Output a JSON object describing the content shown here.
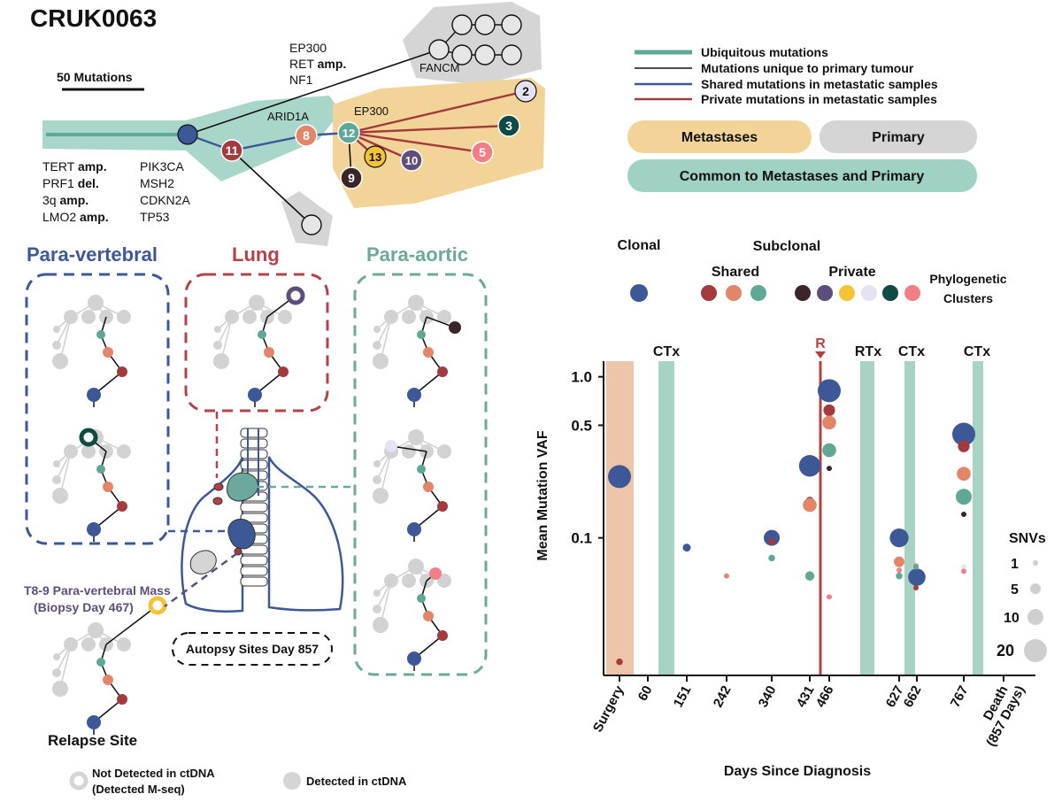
{
  "title": "CRUK0063",
  "colors": {
    "teal": "#5fa896",
    "teal_light": "#9fd1c4",
    "metastasis_bg": "#f3d498",
    "primary_bg": "#d5d5d5",
    "navy": "#3d5896",
    "dark_red": "#a33a3d",
    "coral": "#e2866a",
    "purple": "#5e4e7c",
    "yellow": "#f5c334",
    "lavender": "#e5e3f2",
    "dark_green": "#0f4b45",
    "pink": "#f37f86",
    "dark_brown": "#3a2628",
    "lung_red": "#b3434a",
    "paraaortic_teal": "#6aa99c",
    "surgery_band": "#eec5a8",
    "therapy_band": "#a8d3c2",
    "relapse_line": "#b54242"
  },
  "tree": {
    "scale_label": "50 Mutations",
    "trunk_drivers": [
      "TERT amp.",
      "PRF1 del.",
      "3q amp.",
      "LMO2 amp."
    ],
    "branch_drivers": [
      "PIK3CA",
      "MSH2",
      "CDKN2A",
      "TP53"
    ],
    "primary_drivers": [
      "EP300",
      "RET amp.",
      "NF1"
    ],
    "fancm": "FANCM",
    "arid1a": "ARID1A",
    "ep300_met": "EP300",
    "node_labels": {
      "n11": "11",
      "n8": "8",
      "n12": "12",
      "n13": "13",
      "n10": "10",
      "n9": "9",
      "n2": "2",
      "n3": "3",
      "n5": "5"
    }
  },
  "legend": {
    "lines": [
      {
        "label": "Ubiquitous mutations",
        "color": "#5fa896"
      },
      {
        "label": "Mutations unique to primary tumour",
        "color": "#111111"
      },
      {
        "label": "Shared mutations in metastatic samples",
        "color": "#3d5896"
      },
      {
        "label": "Private mutations in metastatic samples",
        "color": "#a33a3d"
      }
    ],
    "boxes": {
      "metastases": "Metastases",
      "primary": "Primary",
      "common": "Common to Metastases and Primary"
    }
  },
  "sites": {
    "para_vertebral": "Para-vertebral",
    "lung": "Lung",
    "para_aortic": "Para-aortic",
    "biopsy_line1": "T8-9 Para-vertebral Mass",
    "biopsy_line2": "(Biopsy Day 467)",
    "autopsy": "Autopsy Sites Day 857",
    "relapse": "Relapse Site"
  },
  "bottom_legend": {
    "not_detected_1": "Not Detected in ctDNA",
    "not_detected_2": "(Detected M-seq)",
    "detected": "Detected in ctDNA"
  },
  "cluster_legend": {
    "clonal": "Clonal",
    "subclonal": "Subclonal",
    "shared": "Shared",
    "private": "Private",
    "phylo1": "Phylogenetic",
    "phylo2": "Clusters"
  },
  "chart_data": {
    "type": "scatter",
    "ylabel": "Mean Mutation VAF",
    "xlabel": "Days Since Diagnosis",
    "y_scale": "log",
    "y_ticks": [
      {
        "value": 1.0,
        "label": "1.0"
      },
      {
        "value": 0.5,
        "label": "0.5"
      },
      {
        "value": 0.1,
        "label": "0.1"
      }
    ],
    "x_ticks": [
      "Surgery",
      "60",
      "151",
      "242",
      "340",
      "431",
      "466",
      "627",
      "662",
      "767",
      "Death",
      "(857 Days)"
    ],
    "therapy_labels": {
      "ctx1": "CTx",
      "rtx": "RTx",
      "ctx2": "CTx",
      "ctx3": "CTx",
      "relapse": "R"
    },
    "size_legend": {
      "title": "SNVs",
      "entries": [
        "1",
        "5",
        "10",
        "20"
      ]
    },
    "series": [
      {
        "x": "Surgery",
        "vaf": 0.24,
        "cluster": "clonal",
        "color": "#3d5896",
        "snvs": 20
      },
      {
        "x": "Surgery",
        "vaf": 0.017,
        "cluster": "shared",
        "color": "#a33a3d",
        "snvs": 2
      },
      {
        "x": "151",
        "vaf": 0.087,
        "cluster": "clonal",
        "color": "#3d5896",
        "snvs": 3
      },
      {
        "x": "242",
        "vaf": 0.058,
        "cluster": "shared",
        "color": "#e2866a",
        "snvs": 1
      },
      {
        "x": "340",
        "vaf": 0.1,
        "cluster": "clonal",
        "color": "#3d5896",
        "snvs": 10
      },
      {
        "x": "340",
        "vaf": 0.095,
        "cluster": "shared",
        "color": "#a33a3d",
        "snvs": 2
      },
      {
        "x": "340",
        "vaf": 0.075,
        "cluster": "shared",
        "color": "#5fa896",
        "snvs": 2
      },
      {
        "x": "431",
        "vaf": 0.28,
        "cluster": "clonal",
        "color": "#3d5896",
        "snvs": 18
      },
      {
        "x": "431",
        "vaf": 0.17,
        "cluster": "shared",
        "color": "#a33a3d",
        "snvs": 3
      },
      {
        "x": "431",
        "vaf": 0.16,
        "cluster": "shared",
        "color": "#e2866a",
        "snvs": 8
      },
      {
        "x": "431",
        "vaf": 0.058,
        "cluster": "shared",
        "color": "#5fa896",
        "snvs": 4
      },
      {
        "x": "466",
        "vaf": 0.82,
        "cluster": "clonal",
        "color": "#3d5896",
        "snvs": 20
      },
      {
        "x": "466",
        "vaf": 0.62,
        "cluster": "shared",
        "color": "#a33a3d",
        "snvs": 6
      },
      {
        "x": "466",
        "vaf": 0.52,
        "cluster": "shared",
        "color": "#e2866a",
        "snvs": 8
      },
      {
        "x": "466",
        "vaf": 0.35,
        "cluster": "shared",
        "color": "#5fa896",
        "snvs": 8
      },
      {
        "x": "466",
        "vaf": 0.27,
        "cluster": "private",
        "color": "#3a2628",
        "snvs": 1
      },
      {
        "x": "466",
        "vaf": 0.043,
        "cluster": "private",
        "color": "#f37f86",
        "snvs": 1
      },
      {
        "x": "627",
        "vaf": 0.1,
        "cluster": "clonal",
        "color": "#3d5896",
        "snvs": 14
      },
      {
        "x": "627",
        "vaf": 0.071,
        "cluster": "shared",
        "color": "#e2866a",
        "snvs": 5
      },
      {
        "x": "627",
        "vaf": 0.063,
        "cluster": "private",
        "color": "#f37f86",
        "snvs": 1
      },
      {
        "x": "627",
        "vaf": 0.058,
        "cluster": "shared",
        "color": "#5fa896",
        "snvs": 2
      },
      {
        "x": "662",
        "vaf": 0.057,
        "cluster": "clonal",
        "color": "#3d5896",
        "snvs": 12
      },
      {
        "x": "662",
        "vaf": 0.067,
        "cluster": "shared",
        "color": "#e2866a",
        "snvs": 1
      },
      {
        "x": "662",
        "vaf": 0.066,
        "cluster": "shared",
        "color": "#5fa896",
        "snvs": 1
      },
      {
        "x": "662",
        "vaf": 0.049,
        "cluster": "shared",
        "color": "#a33a3d",
        "snvs": 1
      },
      {
        "x": "767",
        "vaf": 0.44,
        "cluster": "clonal",
        "color": "#3d5896",
        "snvs": 20
      },
      {
        "x": "767",
        "vaf": 0.37,
        "cluster": "shared",
        "color": "#a33a3d",
        "snvs": 6
      },
      {
        "x": "767",
        "vaf": 0.25,
        "cluster": "shared",
        "color": "#e2866a",
        "snvs": 8
      },
      {
        "x": "767",
        "vaf": 0.18,
        "cluster": "shared",
        "color": "#5fa896",
        "snvs": 10
      },
      {
        "x": "767",
        "vaf": 0.14,
        "cluster": "private",
        "color": "#3a2628",
        "snvs": 1
      },
      {
        "x": "767",
        "vaf": 0.066,
        "cluster": "private",
        "color": "#e5e3f2",
        "snvs": 1
      },
      {
        "x": "767",
        "vaf": 0.062,
        "cluster": "private",
        "color": "#f37f86",
        "snvs": 1
      }
    ]
  }
}
